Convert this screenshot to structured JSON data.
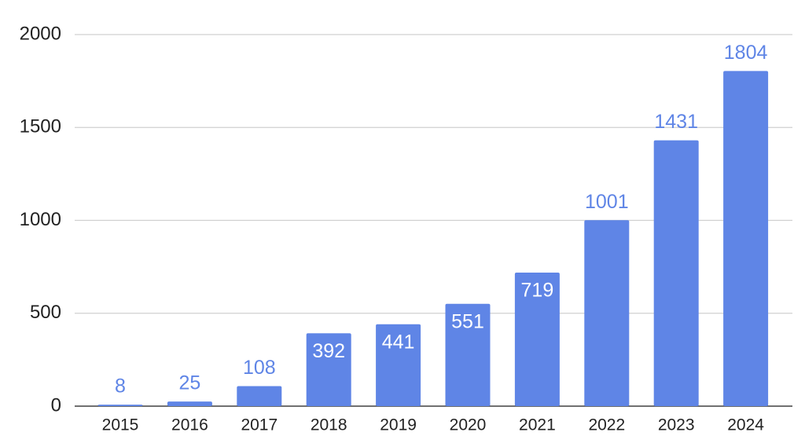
{
  "chart_data": {
    "type": "bar",
    "categories": [
      "2015",
      "2016",
      "2017",
      "2018",
      "2019",
      "2020",
      "2021",
      "2022",
      "2023",
      "2024"
    ],
    "values": [
      8,
      25,
      108,
      392,
      441,
      551,
      719,
      1001,
      1431,
      1804
    ],
    "color": "#5f85e6",
    "ylim": [
      0,
      2000
    ],
    "yticks": [
      0,
      500,
      1000,
      1500,
      2000
    ],
    "grid": true
  }
}
